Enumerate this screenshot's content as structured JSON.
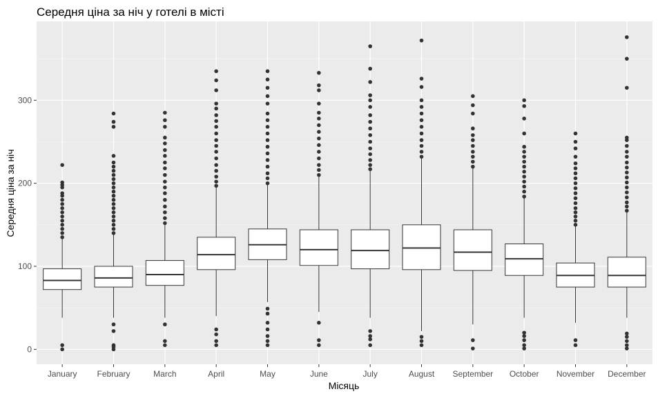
{
  "chart_data": {
    "type": "boxplot",
    "title": "Середня ціна за ніч у готелі в місті",
    "xlabel": "Місяць",
    "ylabel": "Середня ціна за ніч",
    "ylim": [
      -18,
      395
    ],
    "yticks": [
      0,
      100,
      200,
      300
    ],
    "grid": true,
    "colors": {
      "panel": "#EBEBEB",
      "grid_major": "#FFFFFF",
      "box_fill": "#FFFFFF",
      "stroke": "#333333",
      "text": "#4D4D4D"
    },
    "categories": [
      "January",
      "February",
      "March",
      "April",
      "May",
      "June",
      "July",
      "August",
      "September",
      "October",
      "November",
      "December"
    ],
    "boxes": [
      {
        "month": "January",
        "whislo": 38,
        "q1": 72,
        "med": 83,
        "q3": 97,
        "whishi": 133,
        "outliers": [
          0,
          5,
          135,
          140,
          145,
          150,
          155,
          160,
          165,
          170,
          175,
          180,
          185,
          188,
          195,
          198,
          201,
          222
        ]
      },
      {
        "month": "February",
        "whislo": 38,
        "q1": 75,
        "med": 86,
        "q3": 100,
        "whishi": 138,
        "outliers": [
          0,
          3,
          5,
          22,
          30,
          140,
          145,
          150,
          155,
          160,
          165,
          170,
          175,
          180,
          185,
          190,
          195,
          200,
          205,
          210,
          215,
          220,
          225,
          233,
          268,
          274,
          284
        ]
      },
      {
        "month": "March",
        "whislo": 38,
        "q1": 77,
        "med": 90,
        "q3": 107,
        "whishi": 150,
        "outliers": [
          5,
          10,
          30,
          152,
          158,
          165,
          172,
          180,
          188,
          195,
          202,
          210,
          218,
          225,
          233,
          240,
          248,
          255,
          268,
          276,
          285
        ]
      },
      {
        "month": "April",
        "whislo": 40,
        "q1": 96,
        "med": 114,
        "q3": 135,
        "whishi": 195,
        "outliers": [
          5,
          10,
          18,
          24,
          197,
          202,
          208,
          215,
          222,
          230,
          238,
          245,
          252,
          260,
          268,
          275,
          282,
          290,
          296,
          312,
          324,
          335
        ]
      },
      {
        "month": "May",
        "whislo": 57,
        "q1": 108,
        "med": 126,
        "q3": 145,
        "whishi": 198,
        "outliers": [
          5,
          10,
          16,
          24,
          32,
          43,
          49,
          200,
          206,
          212,
          220,
          228,
          236,
          244,
          252,
          260,
          268,
          276,
          284,
          296,
          305,
          315,
          325,
          335
        ]
      },
      {
        "month": "June",
        "whislo": 45,
        "q1": 101,
        "med": 120,
        "q3": 144,
        "whishi": 208,
        "outliers": [
          5,
          11,
          32,
          210,
          216,
          222,
          230,
          238,
          246,
          254,
          262,
          270,
          278,
          285,
          296,
          312,
          318,
          333
        ]
      },
      {
        "month": "July",
        "whislo": 38,
        "q1": 97,
        "med": 119,
        "q3": 144,
        "whishi": 215,
        "outliers": [
          5,
          12,
          16,
          22,
          217,
          222,
          228,
          235,
          242,
          250,
          258,
          266,
          274,
          282,
          292,
          300,
          306,
          322,
          338,
          365
        ]
      },
      {
        "month": "August",
        "whislo": 22,
        "q1": 96,
        "med": 122,
        "q3": 150,
        "whishi": 230,
        "outliers": [
          5,
          10,
          15,
          232,
          238,
          245,
          252,
          260,
          268,
          276,
          284,
          292,
          300,
          316,
          326,
          372
        ]
      },
      {
        "month": "September",
        "whislo": 30,
        "q1": 95,
        "med": 117,
        "q3": 144,
        "whishi": 218,
        "outliers": [
          1,
          11,
          220,
          226,
          232,
          238,
          245,
          252,
          258,
          266,
          284,
          294,
          305
        ]
      },
      {
        "month": "October",
        "whislo": 38,
        "q1": 89,
        "med": 109,
        "q3": 127,
        "whishi": 182,
        "outliers": [
          1,
          5,
          11,
          16,
          20,
          184,
          190,
          196,
          202,
          208,
          214,
          220,
          226,
          232,
          238,
          244,
          260,
          278,
          293,
          300
        ]
      },
      {
        "month": "November",
        "whislo": 32,
        "q1": 75,
        "med": 89,
        "q3": 104,
        "whishi": 148,
        "outliers": [
          5,
          11,
          150,
          155,
          160,
          165,
          170,
          176,
          182,
          188,
          194,
          200,
          206,
          212,
          218,
          224,
          232,
          242,
          250,
          260
        ]
      },
      {
        "month": "December",
        "whislo": 38,
        "q1": 75,
        "med": 89,
        "q3": 111,
        "whishi": 165,
        "outliers": [
          1,
          5,
          10,
          15,
          19,
          167,
          172,
          177,
          183,
          189,
          195,
          201,
          207,
          213,
          219,
          225,
          232,
          238,
          245,
          252,
          255,
          315,
          350,
          376
        ]
      }
    ]
  }
}
